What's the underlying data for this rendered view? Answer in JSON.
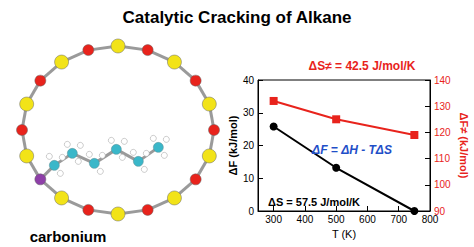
{
  "chart_data": {
    "type": "line",
    "title": "Catalytic Cracking of Alkane",
    "x_label": "T (K)",
    "y_label": "ΔF (kJ/mol)",
    "y2_label": "ΔF≠ (kJ/mol)",
    "xlim": [
      250,
      800
    ],
    "xticks": [
      300,
      400,
      500,
      600,
      700,
      800
    ],
    "ylim": [
      0,
      40
    ],
    "yticks": [
      0,
      10,
      20,
      30,
      40
    ],
    "y2lim": [
      90,
      140
    ],
    "y2ticks": [
      90,
      100,
      110,
      120,
      130,
      140
    ],
    "grid": false,
    "series": [
      {
        "color": "#000000",
        "marker": "circle",
        "x": [
          300,
          500,
          750
        ],
        "values": [
          25.8,
          13.2,
          0
        ]
      },
      {
        "color": "#e8231c",
        "marker": "square",
        "axis": "y2",
        "x": [
          300,
          500,
          750
        ],
        "values": [
          132,
          125,
          119
        ]
      }
    ],
    "annotations": [
      {
        "text": "ΔS≠ = 42.5 J/mol/K",
        "color": "#e8231c"
      },
      {
        "text": "ΔF = ΔH - TΔS",
        "color": "#1f4fc8"
      },
      {
        "text": "ΔS = 57.5 J/mol/K",
        "color": "#000000"
      },
      {
        "text": "carbonium",
        "color": "#000000"
      }
    ]
  }
}
